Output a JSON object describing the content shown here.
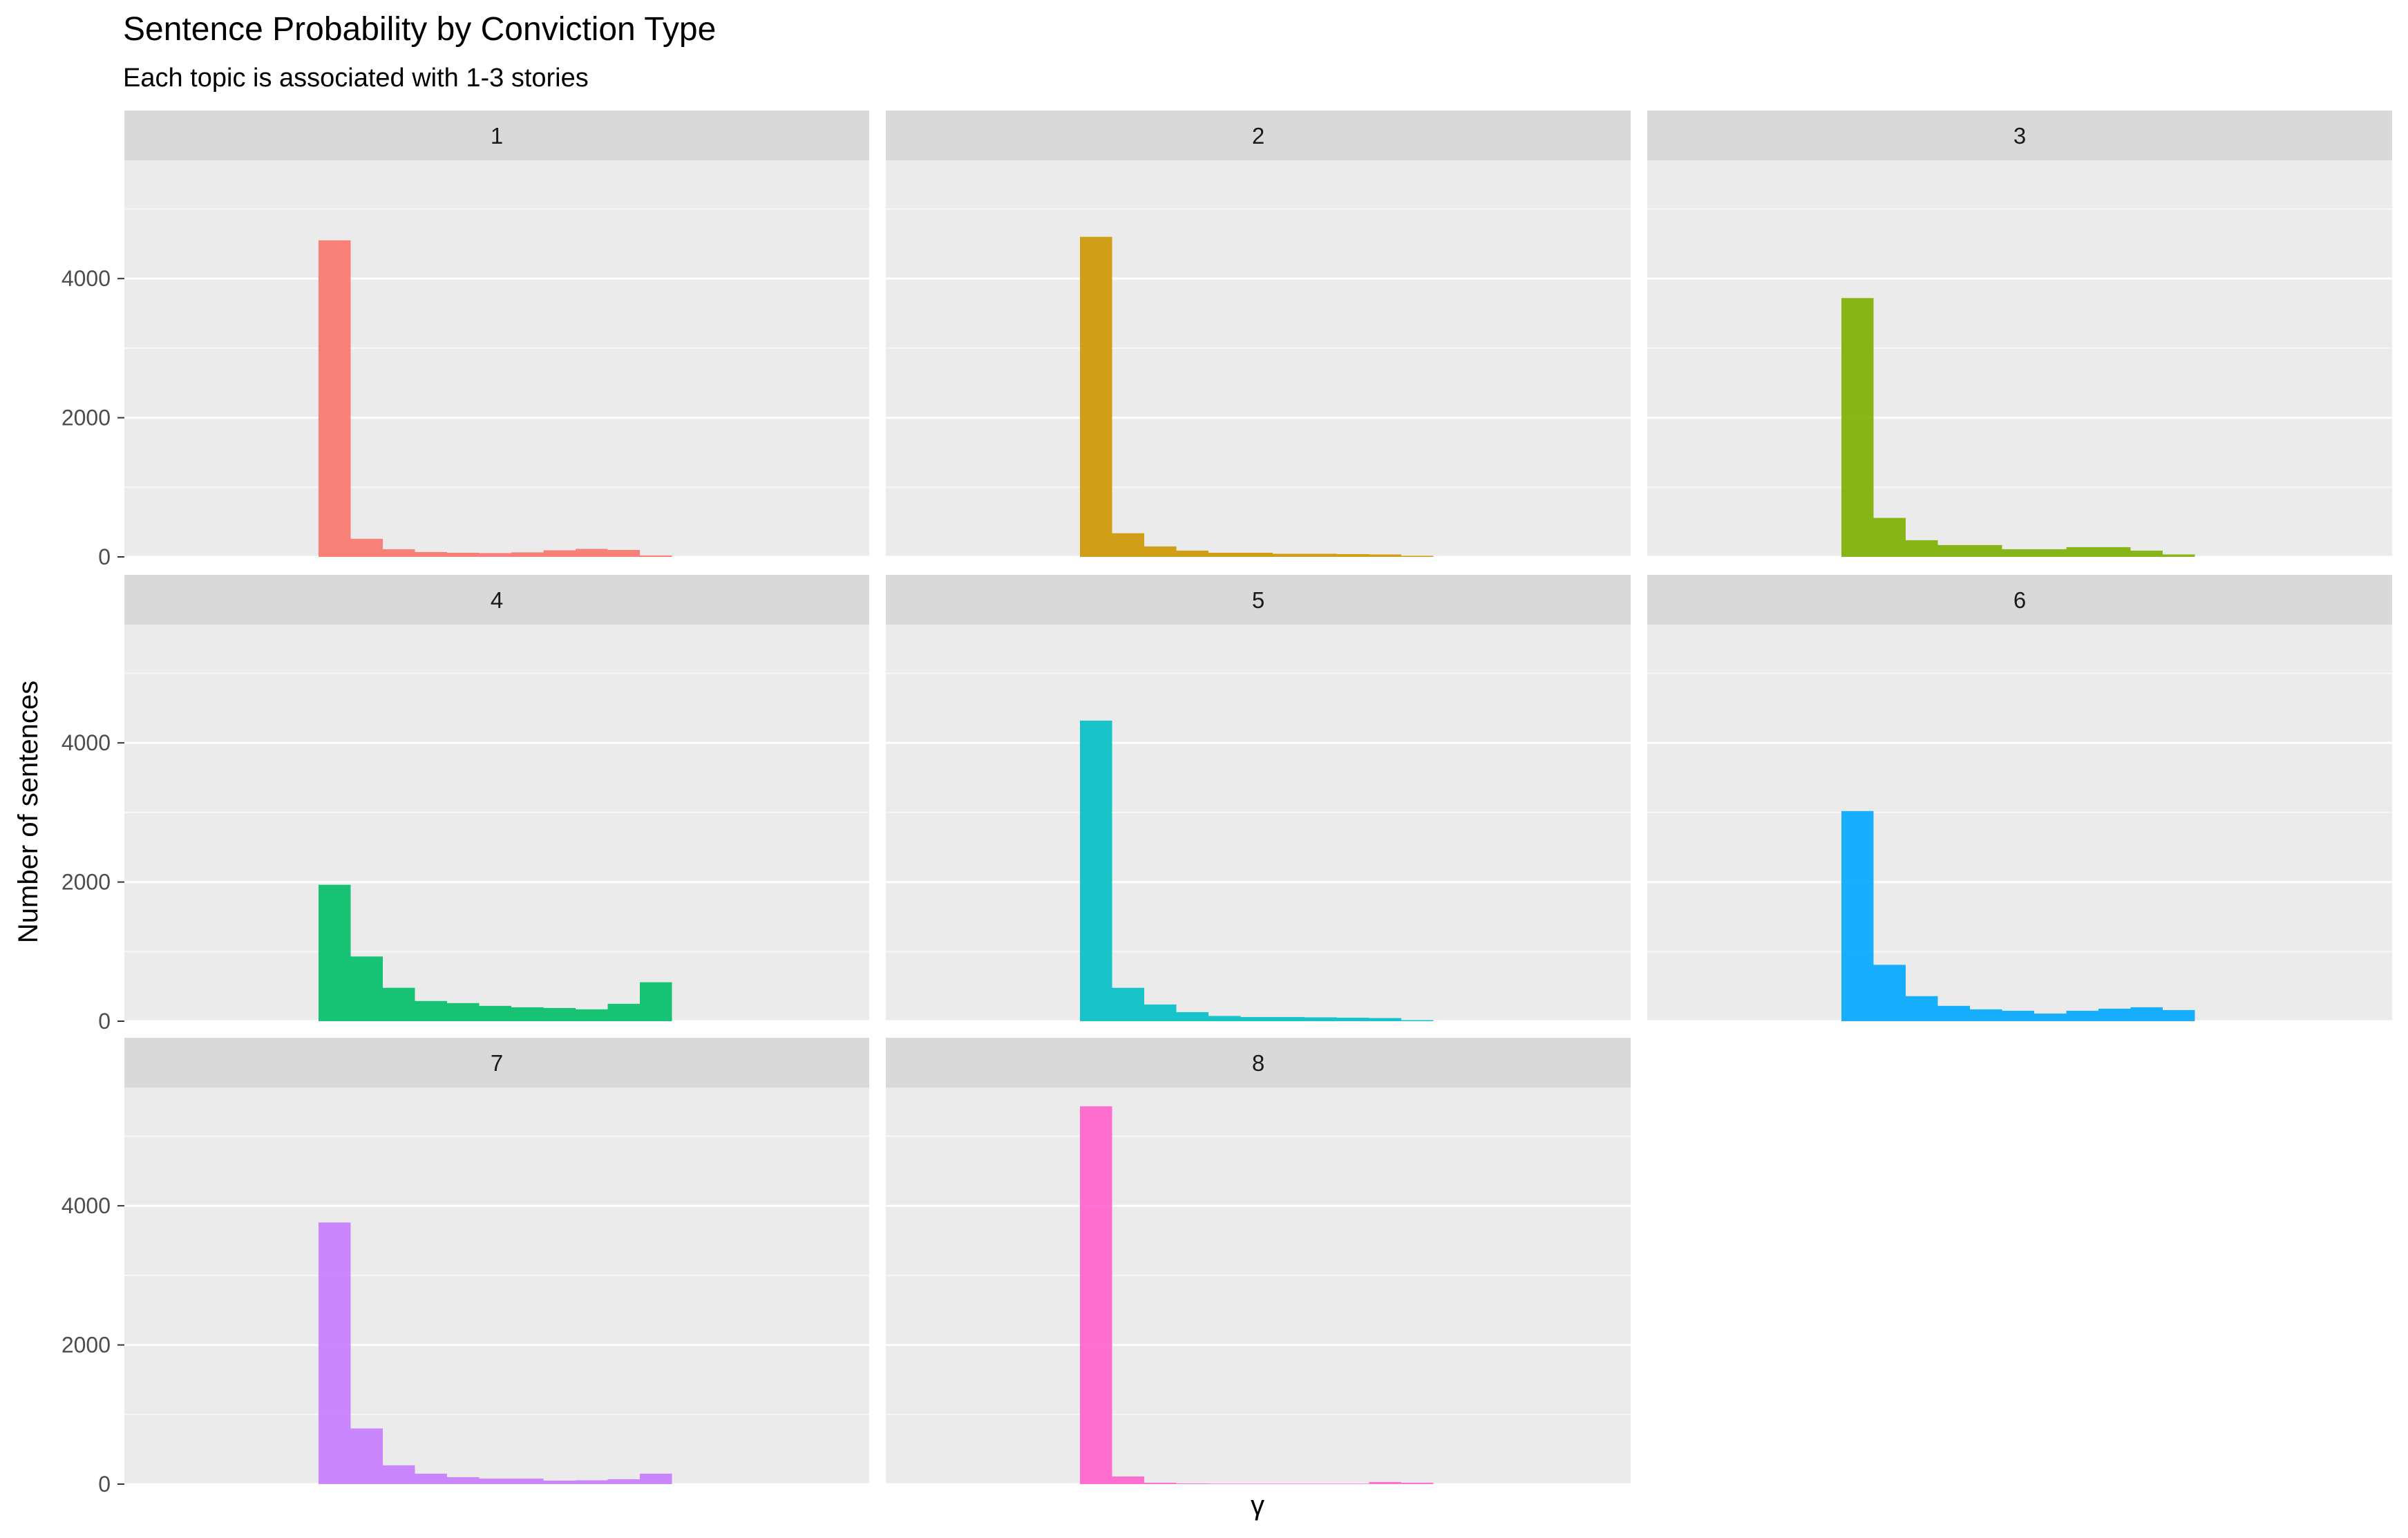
{
  "chart_data": {
    "type": "bar",
    "title": "Sentence Probability by Conviction Type",
    "subtitle": "Each topic is associated with 1-3 stories",
    "xlabel": "γ",
    "ylabel": "Number of sentences",
    "ylim": [
      0,
      5700
    ],
    "yticks": [
      0,
      2000,
      4000
    ],
    "grid": true,
    "legend": "none",
    "facets": [
      {
        "label": "1",
        "color": "#F8766D",
        "values": [
          4550,
          260,
          110,
          70,
          60,
          55,
          65,
          95,
          115,
          100,
          20
        ]
      },
      {
        "label": "2",
        "color": "#CD9600",
        "values": [
          4600,
          340,
          150,
          90,
          60,
          60,
          45,
          45,
          40,
          35,
          15
        ]
      },
      {
        "label": "3",
        "color": "#7CAE00",
        "values": [
          3720,
          560,
          240,
          170,
          170,
          110,
          110,
          140,
          140,
          90,
          35
        ]
      },
      {
        "label": "4",
        "color": "#00BE67",
        "values": [
          1960,
          930,
          480,
          290,
          260,
          220,
          200,
          190,
          170,
          250,
          560
        ]
      },
      {
        "label": "5",
        "color": "#00BFC4",
        "values": [
          4320,
          480,
          240,
          130,
          75,
          60,
          60,
          55,
          50,
          45,
          15
        ]
      },
      {
        "label": "6",
        "color": "#00A9FF",
        "values": [
          3020,
          810,
          360,
          220,
          170,
          150,
          110,
          150,
          180,
          200,
          160
        ]
      },
      {
        "label": "7",
        "color": "#C77CFF",
        "values": [
          3760,
          800,
          270,
          150,
          100,
          80,
          80,
          50,
          55,
          70,
          150
        ]
      },
      {
        "label": "8",
        "color": "#FF61CC",
        "values": [
          5430,
          110,
          20,
          10,
          8,
          8,
          8,
          8,
          8,
          30,
          20
        ]
      }
    ]
  }
}
